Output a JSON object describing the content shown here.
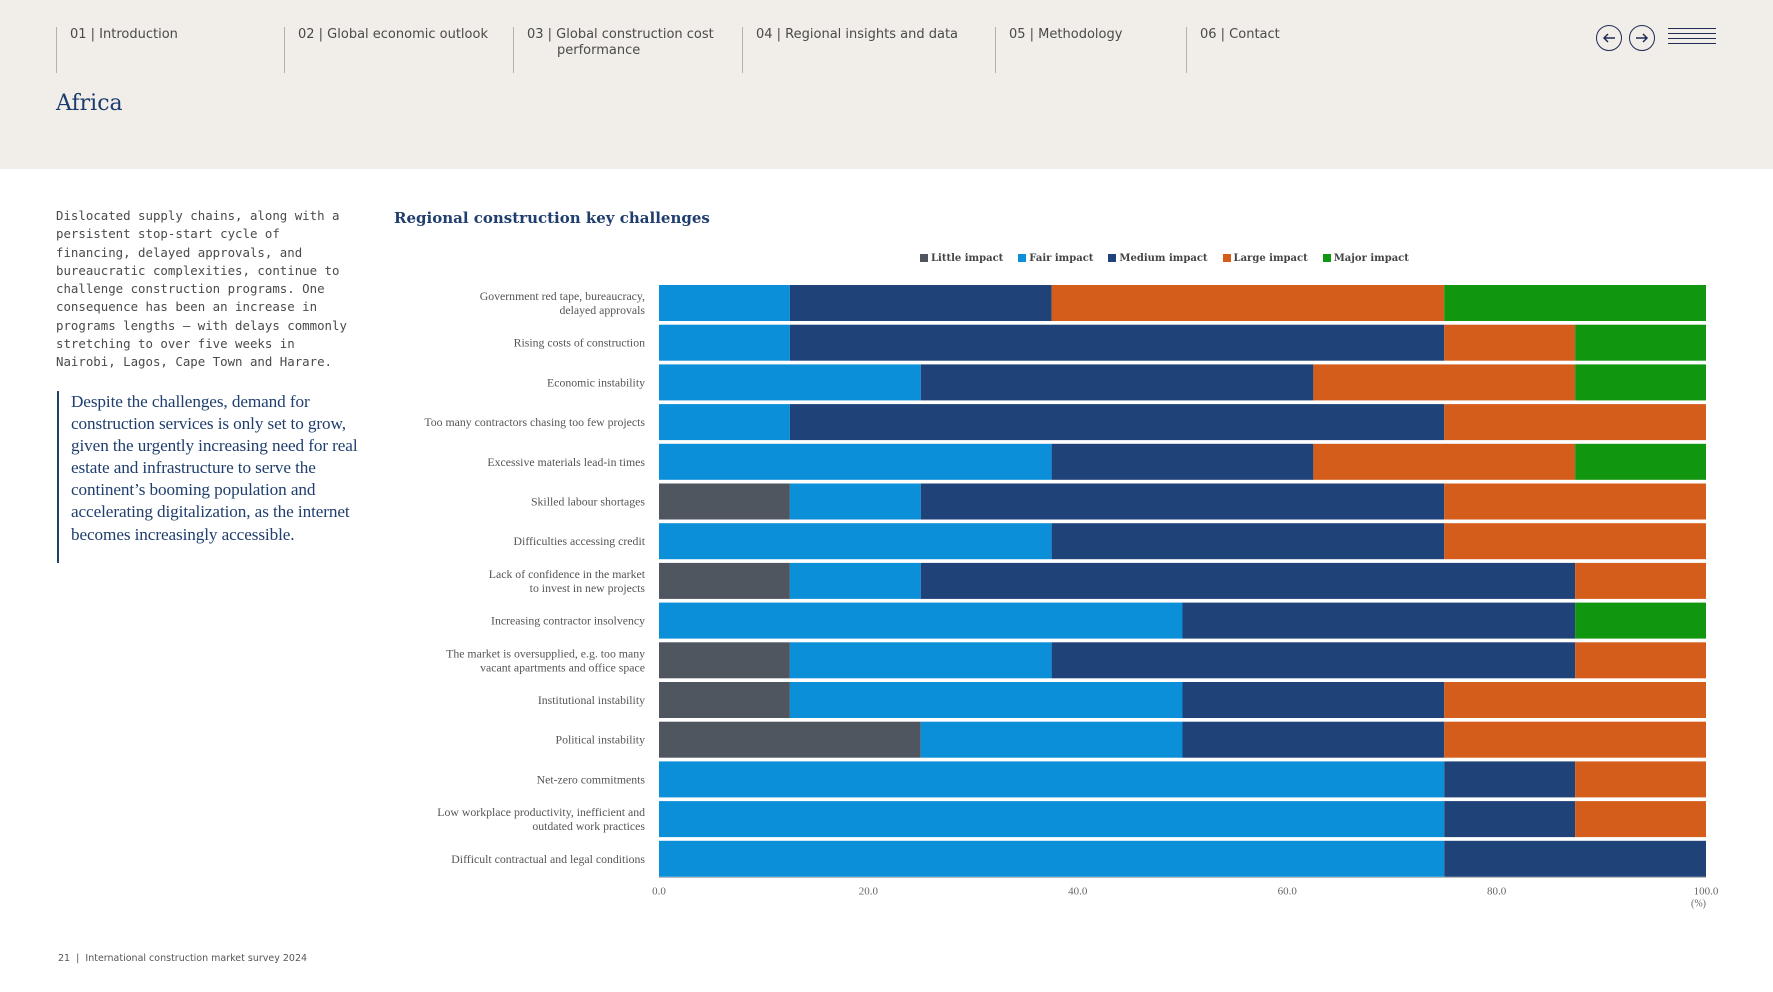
{
  "nav": {
    "items": [
      {
        "label": "01 | Introduction"
      },
      {
        "label": "02 | Global economic outlook"
      },
      {
        "label": "03 | Global construction cost",
        "cont": "performance"
      },
      {
        "label": "04 | Regional insights and data"
      },
      {
        "label": "05 | Methodology"
      },
      {
        "label": "06 | Contact"
      }
    ]
  },
  "page": {
    "title": "Africa",
    "intro": "Dislocated supply chains, along with a persistent stop-start cycle of financing, delayed approvals, and bureaucratic complexities, continue to challenge construction programs. One consequence has been an increase in programs lengths – with delays commonly stretching to over five weeks in Nairobi, Lagos, Cape Town and Harare.",
    "quote": "Despite the challenges, demand for construction services is only set to grow, given the urgently increasing need for real estate and infrastructure to serve the continent’s booming population and accelerating digitalization, as the internet becomes increasingly accessible."
  },
  "footer": {
    "page_number": "21",
    "publication": "International construction market survey 2024"
  },
  "colors": {
    "little": "#4f5660",
    "fair": "#0b8fd9",
    "medium": "#1f4278",
    "large": "#d45d1c",
    "major": "#11960f"
  },
  "chart_data": {
    "type": "bar",
    "orientation": "horizontal",
    "stacked": true,
    "title": "Regional construction key challenges",
    "xlabel": "(%)",
    "xlim": [
      0,
      100
    ],
    "xticks": [
      "0.0",
      "20.0",
      "40.0",
      "60.0",
      "80.0",
      "100.0"
    ],
    "legend_position": "top",
    "categories": [
      [
        "Government red tape, bureaucracy,",
        "delayed approvals"
      ],
      [
        "Rising costs of construction"
      ],
      [
        "Economic instability"
      ],
      [
        "Too many contractors chasing too few projects"
      ],
      [
        "Excessive materials lead-in times"
      ],
      [
        "Skilled labour shortages"
      ],
      [
        "Difficulties accessing credit"
      ],
      [
        "Lack of confidence in the market",
        "to invest in new projects"
      ],
      [
        "Increasing contractor insolvency"
      ],
      [
        "The market is oversupplied, e.g. too many",
        "vacant apartments and office space"
      ],
      [
        "Institutional instability"
      ],
      [
        "Political instability"
      ],
      [
        "Net-zero commitments"
      ],
      [
        "Low workplace productivity, inefficient and",
        "outdated work practices"
      ],
      [
        "Difficult contractual and legal conditions"
      ]
    ],
    "series": [
      {
        "name": "Little impact",
        "key": "little",
        "values": [
          0,
          0,
          0,
          0,
          0,
          12.5,
          0,
          12.5,
          0,
          12.5,
          12.5,
          25,
          0,
          0,
          0
        ]
      },
      {
        "name": "Fair impact",
        "key": "fair",
        "values": [
          12.5,
          12.5,
          25,
          12.5,
          37.5,
          12.5,
          37.5,
          12.5,
          50,
          25,
          37.5,
          25,
          75,
          75,
          75
        ]
      },
      {
        "name": "Medium impact",
        "key": "medium",
        "values": [
          25,
          62.5,
          37.5,
          62.5,
          25,
          50,
          37.5,
          62.5,
          37.5,
          50,
          25,
          25,
          12.5,
          12.5,
          25
        ]
      },
      {
        "name": "Large impact",
        "key": "large",
        "values": [
          37.5,
          12.5,
          25,
          25,
          25,
          25,
          25,
          12.5,
          0,
          12.5,
          25,
          25,
          12.5,
          12.5,
          0
        ]
      },
      {
        "name": "Major impact",
        "key": "major",
        "values": [
          25,
          12.5,
          12.5,
          0,
          12.5,
          0,
          0,
          0,
          12.5,
          0,
          0,
          0,
          0,
          0,
          0
        ]
      }
    ]
  }
}
